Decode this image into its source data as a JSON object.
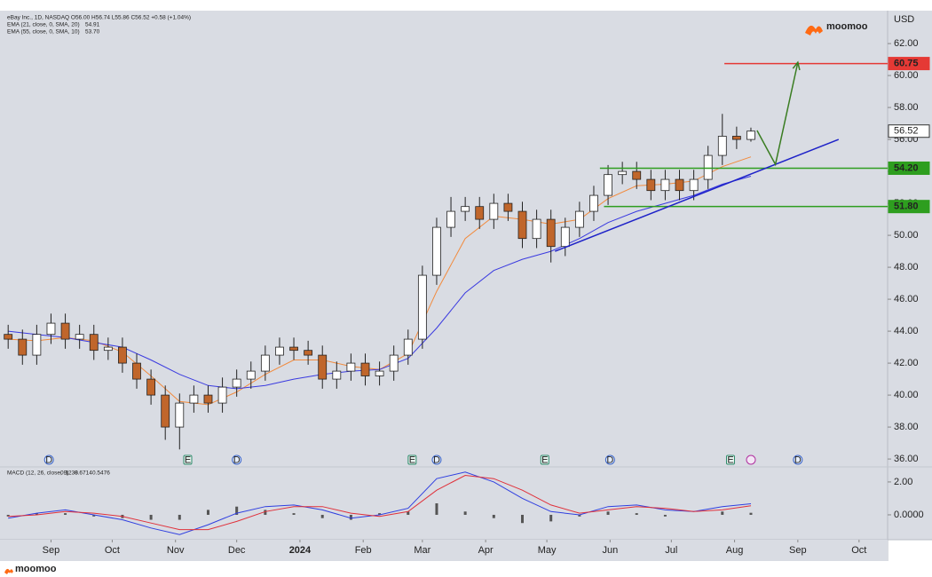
{
  "chart_data": [
    {
      "type": "candlestick",
      "header_lines": [
        "eBay Inc., 1D, NASDAQ  O56.00  H56.74  L55.86  C56.52  +0.58 (+1.04%)"
      ],
      "currency": "USD",
      "brand": "moomoo",
      "xlim": [
        -25,
        410
      ],
      "ylim": [
        35.56,
        64.06
      ],
      "yticks": [
        {
          "value": 36,
          "label": "36.00"
        },
        {
          "value": 38,
          "label": "38.00"
        },
        {
          "value": 40,
          "label": "40.00"
        },
        {
          "value": 42,
          "label": "42.00"
        },
        {
          "value": 44,
          "label": "44.00"
        },
        {
          "value": 46,
          "label": "46.00"
        },
        {
          "value": 48,
          "label": "48.00"
        },
        {
          "value": 50,
          "label": "50.00"
        },
        {
          "value": 52,
          "label": "52.00"
        },
        {
          "value": 54,
          "label": "54.00"
        },
        {
          "value": 56,
          "label": "56.00"
        },
        {
          "value": 58,
          "label": "58.00"
        },
        {
          "value": 60,
          "label": "60.00"
        },
        {
          "value": 62,
          "label": "62.00"
        }
      ],
      "up_color": "#ffffff",
      "down_color": "#c0662b",
      "x": [
        -21,
        -14,
        -7,
        0,
        7,
        14,
        21,
        28,
        35,
        42,
        49,
        56,
        63,
        70,
        77,
        84,
        91,
        98,
        105,
        112,
        119,
        126,
        133,
        140,
        147,
        154,
        161,
        168,
        175,
        182,
        189,
        196,
        203,
        210,
        217,
        224,
        231,
        238,
        245,
        252,
        259,
        266,
        273,
        280,
        287,
        294,
        301,
        308,
        315,
        322,
        329,
        336,
        343
      ],
      "open": [
        43.8,
        43.5,
        42.5,
        43.8,
        44.5,
        43.5,
        43.8,
        42.8,
        43.0,
        42.0,
        41.0,
        40.0,
        38.0,
        39.5,
        40.0,
        39.5,
        40.5,
        41.0,
        41.5,
        42.5,
        43.0,
        42.8,
        42.5,
        41.0,
        41.5,
        42.0,
        41.2,
        41.5,
        42.5,
        43.5,
        47.5,
        50.5,
        51.5,
        51.8,
        51.0,
        52.0,
        51.5,
        49.8,
        51.0,
        49.3,
        50.5,
        51.5,
        52.5,
        53.8,
        54.0,
        53.5,
        52.8,
        53.5,
        52.8,
        53.5,
        55.0,
        56.2,
        56.0
      ],
      "high": [
        44.4,
        44.1,
        44.4,
        45.1,
        45.1,
        44.4,
        44.4,
        43.6,
        43.6,
        42.6,
        41.6,
        40.6,
        40.1,
        40.6,
        40.6,
        41.1,
        41.6,
        42.1,
        43.1,
        43.6,
        43.6,
        43.4,
        43.1,
        42.1,
        42.6,
        42.6,
        42.1,
        43.1,
        44.1,
        48.1,
        51.1,
        52.4,
        52.4,
        52.4,
        52.6,
        52.6,
        52.1,
        51.6,
        51.6,
        51.1,
        52.1,
        53.1,
        54.4,
        54.6,
        54.6,
        54.1,
        54.1,
        54.1,
        54.1,
        55.6,
        57.6,
        56.8,
        56.74
      ],
      "low": [
        42.9,
        41.9,
        41.9,
        43.2,
        42.9,
        42.9,
        42.2,
        42.2,
        41.4,
        40.4,
        39.4,
        37.2,
        36.6,
        38.9,
        38.9,
        38.9,
        39.9,
        40.4,
        40.9,
        41.9,
        42.2,
        41.9,
        40.4,
        40.4,
        40.9,
        40.6,
        40.6,
        40.9,
        41.9,
        42.9,
        46.9,
        49.9,
        50.9,
        50.4,
        50.4,
        50.9,
        49.2,
        49.2,
        48.3,
        48.7,
        49.9,
        50.9,
        51.9,
        53.2,
        52.9,
        52.2,
        52.2,
        52.2,
        52.2,
        52.9,
        54.4,
        55.4,
        55.86
      ],
      "close": [
        43.5,
        42.5,
        43.8,
        44.5,
        43.5,
        43.8,
        42.8,
        43.0,
        42.0,
        41.0,
        40.0,
        38.0,
        39.5,
        40.0,
        39.5,
        40.5,
        41.0,
        41.5,
        42.5,
        43.0,
        42.8,
        42.5,
        41.0,
        41.5,
        42.0,
        41.2,
        41.5,
        42.5,
        43.5,
        47.5,
        50.5,
        51.5,
        51.8,
        51.0,
        52.0,
        51.5,
        49.8,
        51.0,
        49.3,
        50.5,
        51.5,
        52.5,
        53.8,
        54.0,
        53.5,
        52.8,
        53.5,
        52.8,
        53.5,
        55.0,
        56.2,
        56.0,
        56.52
      ],
      "series": [
        {
          "name": "EMA (21, close, 0, SMA, 20)",
          "last_label": "54.91",
          "color": "#f28a3c",
          "x": [
            -21,
            -7,
            7,
            21,
            35,
            49,
            63,
            77,
            91,
            105,
            119,
            133,
            147,
            161,
            175,
            189,
            203,
            217,
            231,
            245,
            259,
            273,
            287,
            301,
            315,
            329,
            343
          ],
          "values": [
            43.5,
            43.4,
            43.6,
            43.4,
            42.7,
            41.2,
            39.6,
            39.4,
            40.2,
            41.3,
            42.2,
            42.2,
            41.8,
            41.6,
            42.6,
            46.5,
            49.8,
            51.2,
            51.0,
            50.7,
            51.0,
            52.3,
            53.1,
            53.2,
            53.4,
            54.3,
            54.91
          ]
        },
        {
          "name": "EMA (55, close, 0, SMA, 10)",
          "last_label": "53.70",
          "color": "#3a3ae0",
          "x": [
            -21,
            -7,
            7,
            21,
            35,
            49,
            63,
            77,
            91,
            105,
            119,
            133,
            147,
            161,
            175,
            189,
            203,
            217,
            231,
            245,
            259,
            273,
            287,
            301,
            315,
            329,
            343
          ],
          "values": [
            44.0,
            43.8,
            43.6,
            43.3,
            43.0,
            42.2,
            41.3,
            40.6,
            40.4,
            40.6,
            41.0,
            41.3,
            41.5,
            41.6,
            42.3,
            44.2,
            46.4,
            47.8,
            48.5,
            49.0,
            49.8,
            50.8,
            51.5,
            52.0,
            52.5,
            53.2,
            53.7
          ]
        }
      ],
      "last_price": {
        "value": 56.52,
        "label": "56.52"
      },
      "levels": [
        {
          "value": 60.75,
          "label": "60.75",
          "color": "#e53935",
          "from": 330
        },
        {
          "value": 54.2,
          "label": "54.20",
          "color": "#2e9e1f",
          "from": 269
        },
        {
          "value": 51.8,
          "label": "51.80",
          "color": "#2e9e1f",
          "from": 271
        }
      ],
      "drawings": [
        {
          "kind": "trendline",
          "color": "#1e22c8",
          "x": [
            247,
            386
          ],
          "y": [
            49.0,
            56.0
          ]
        },
        {
          "kind": "arrow",
          "color": "#3a7d22",
          "x": [
            346,
            355,
            366
          ],
          "y": [
            56.56,
            54.44,
            60.83
          ]
        }
      ],
      "events": [
        {
          "label": "D",
          "x": -1
        },
        {
          "label": "E",
          "x": 67
        },
        {
          "label": "D",
          "x": 91
        },
        {
          "label": "E",
          "x": 177
        },
        {
          "label": "D",
          "x": 189
        },
        {
          "label": "E",
          "x": 242
        },
        {
          "label": "D",
          "x": 274
        },
        {
          "label": "E",
          "x": 333
        },
        {
          "label": "D",
          "x": 366
        }
      ]
    },
    {
      "type": "macd",
      "title": "MACD (12, 26, close, 9)",
      "xlim": [
        -25,
        410
      ],
      "ylim": [
        -1.46,
        2.86
      ],
      "yticks": [
        {
          "value": 0,
          "label": "0.0000"
        },
        {
          "value": 2,
          "label": "2.00"
        }
      ],
      "xticks": [
        {
          "value": 0,
          "label": "Sep"
        },
        {
          "value": 30,
          "label": "Oct"
        },
        {
          "value": 61,
          "label": "Nov"
        },
        {
          "value": 91,
          "label": "Dec"
        },
        {
          "value": 122,
          "label": "2024"
        },
        {
          "value": 153,
          "label": "Feb"
        },
        {
          "value": 182,
          "label": "Mar"
        },
        {
          "value": 213,
          "label": "Apr"
        },
        {
          "value": 243,
          "label": "May"
        },
        {
          "value": 274,
          "label": "Jun"
        },
        {
          "value": 304,
          "label": "Jul"
        },
        {
          "value": 335,
          "label": "Aug"
        },
        {
          "value": 366,
          "label": "Sep"
        },
        {
          "value": 396,
          "label": "Oct"
        }
      ],
      "x": [
        -21,
        -7,
        7,
        21,
        35,
        49,
        63,
        77,
        91,
        105,
        119,
        133,
        147,
        161,
        175,
        189,
        203,
        217,
        231,
        245,
        259,
        273,
        287,
        301,
        315,
        329,
        343
      ],
      "histogram": {
        "color": "#555555",
        "last_label": "0.1238",
        "values": [
          -0.1,
          0.1,
          0.1,
          -0.1,
          -0.2,
          -0.3,
          -0.3,
          0.3,
          0.5,
          0.3,
          0.1,
          -0.2,
          -0.3,
          0.1,
          0.2,
          0.7,
          0.2,
          -0.2,
          -0.5,
          -0.4,
          -0.1,
          0.2,
          0.1,
          -0.1,
          0.0,
          0.2,
          0.1238
        ]
      },
      "series": [
        {
          "name": "MACD",
          "color": "#2f3fe0",
          "last_label": "0.6714",
          "values": [
            -0.2,
            0.1,
            0.3,
            0.0,
            -0.3,
            -0.8,
            -1.2,
            -0.6,
            0.1,
            0.5,
            0.6,
            0.3,
            -0.2,
            0.0,
            0.4,
            2.2,
            2.6,
            2.0,
            1.0,
            0.2,
            0.0,
            0.5,
            0.6,
            0.3,
            0.2,
            0.5,
            0.6714
          ]
        },
        {
          "name": "Signal",
          "color": "#e0303a",
          "last_label": "0.5476",
          "values": [
            -0.1,
            0.0,
            0.2,
            0.1,
            -0.1,
            -0.5,
            -0.9,
            -0.9,
            -0.4,
            0.2,
            0.5,
            0.5,
            0.1,
            -0.1,
            0.2,
            1.5,
            2.4,
            2.2,
            1.5,
            0.6,
            0.1,
            0.3,
            0.5,
            0.4,
            0.2,
            0.3,
            0.5476
          ]
        }
      ]
    }
  ]
}
